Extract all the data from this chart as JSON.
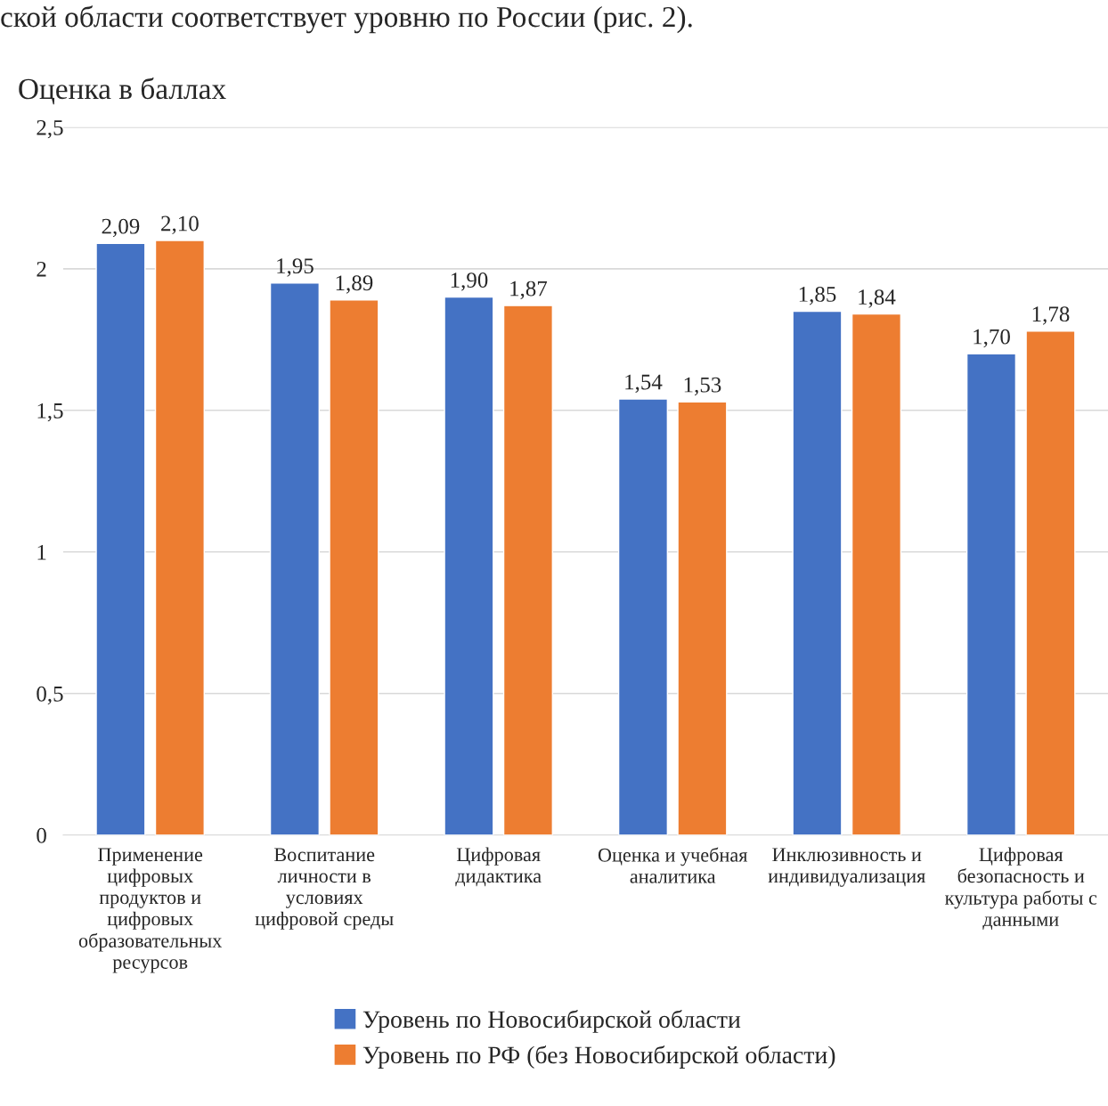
{
  "chart_data": {
    "type": "bar",
    "ylabel": "Оценка в баллах",
    "categories": [
      "Применение\nцифровых\nпродуктов и\nцифровых\nобразовательных\nресурсов",
      "Воспитание\nличности в\nусловиях\nцифровой среды",
      "Цифровая\nдидактика",
      "Оценка и учебная\nаналитика",
      "Инклюзивность и\nиндивидуализация",
      "Цифровая\nбезопасность и\nкультура работы с\nданными"
    ],
    "series": [
      {
        "name": "Уровень по Новосибирской области",
        "color": "#4472c4",
        "values": [
          2.09,
          1.95,
          1.9,
          1.54,
          1.85,
          1.7
        ],
        "value_labels": [
          "2,09",
          "1,95",
          "1,90",
          "1,54",
          "1,85",
          "1,70"
        ]
      },
      {
        "name": "Уровень по РФ (без Новосибирской области)",
        "color": "#ed7d31",
        "values": [
          2.1,
          1.89,
          1.87,
          1.53,
          1.84,
          1.78
        ],
        "value_labels": [
          "2,10",
          "1,89",
          "1,87",
          "1,53",
          "1,84",
          "1,78"
        ]
      }
    ],
    "ylim": [
      0,
      2.5
    ],
    "yticks": [
      0,
      {
        "value": 0.5,
        "label": "0,5"
      },
      1,
      {
        "value": 1.5,
        "label": "1,5"
      },
      2,
      {
        "value": 2.5,
        "label": "2,5"
      }
    ],
    "grid": "y",
    "legend": "bottom",
    "annotations": [
      "ской области соответствует уровню по России (рис. 2)."
    ]
  }
}
